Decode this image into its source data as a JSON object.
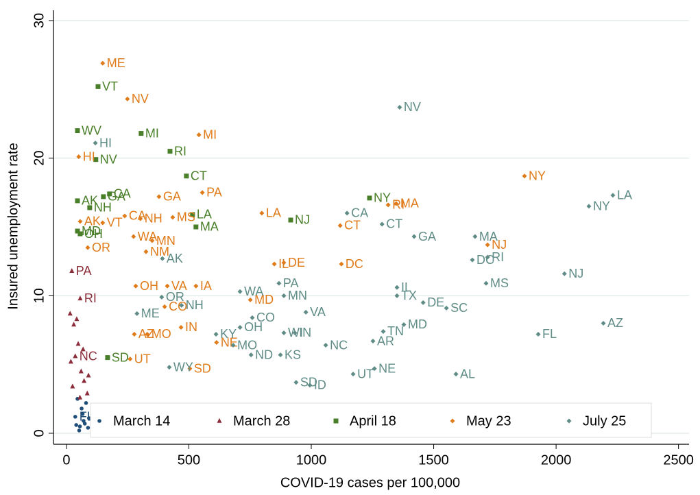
{
  "chart_data": {
    "type": "scatter",
    "xlabel": "COVID-19 cases per 100,000",
    "ylabel": "Insured unemployment rate",
    "xlim": [
      -53,
      2543
    ],
    "ylim": [
      -0.8,
      30.75
    ],
    "xticks": [
      0,
      500,
      1000,
      1500,
      2000,
      2500
    ],
    "yticks": [
      0,
      10,
      20,
      30
    ],
    "grid": true,
    "legend": "bottom",
    "series": [
      {
        "name": "March 14",
        "color": "#1f4e79",
        "marker": "circle",
        "x": [
          36,
          45,
          55,
          62,
          70,
          80,
          88,
          52,
          66,
          75,
          92,
          40
        ],
        "values": [
          1.2,
          2.5,
          0.5,
          1.8,
          0.9,
          2.2,
          0.4,
          0.2,
          1.4,
          0.7,
          1.1,
          0.6
        ],
        "labels": [
          "FL",
          null,
          null,
          null,
          null,
          null,
          null,
          null,
          null,
          null,
          null,
          null
        ]
      },
      {
        "name": "March 28",
        "color": "#8b2d3a",
        "marker": "triangle",
        "x": [
          22,
          56,
          36,
          15,
          30,
          48,
          60,
          72,
          85,
          25,
          42,
          68,
          90,
          18,
          55
        ],
        "values": [
          11.8,
          9.8,
          5.6,
          8.7,
          7.9,
          6.5,
          4.5,
          3.8,
          2.9,
          3.4,
          8.3,
          6.1,
          4.2,
          5.2,
          2.6
        ],
        "labels": [
          "PA",
          "RI",
          "NC",
          null,
          null,
          null,
          null,
          null,
          null,
          null,
          null,
          null,
          null,
          null,
          null
        ]
      },
      {
        "name": "April 18",
        "color": "#4a7f2a",
        "marker": "square",
        "x": [
          129,
          45,
          305,
          120,
          423,
          490,
          1238,
          916,
          529,
          515,
          151,
          45,
          95,
          176,
          45,
          56,
          168
        ],
        "values": [
          25.2,
          22.0,
          21.8,
          19.9,
          20.5,
          18.7,
          17.1,
          15.5,
          15.0,
          15.9,
          17.2,
          16.9,
          16.4,
          17.4,
          14.7,
          14.5,
          5.5
        ],
        "labels": [
          "VT",
          "WV",
          "MI",
          "NV",
          "RI",
          "CT",
          "NY",
          "NJ",
          "MA",
          "LA",
          "GA",
          "AK",
          "NH",
          "CA",
          "MD",
          "OH",
          "SD"
        ]
      },
      {
        "name": "May 23",
        "color": "#e07b1a",
        "marker": "diamond",
        "x": [
          148,
          249,
          541,
          50,
          1871,
          555,
          378,
          798,
          1347,
          1314,
          1118,
          434,
          302,
          238,
          148,
          56,
          274,
          350,
          325,
          1720,
          1123,
          888,
          849,
          87,
          412,
          529,
          751,
          468,
          613,
          504,
          260,
          283,
          401,
          277,
          330
        ],
        "values": [
          26.9,
          24.3,
          21.7,
          20.1,
          18.7,
          17.5,
          17.2,
          16.0,
          16.7,
          16.6,
          15.1,
          15.7,
          15.6,
          15.8,
          15.3,
          15.4,
          14.3,
          14.0,
          13.2,
          13.7,
          12.3,
          12.4,
          12.3,
          13.5,
          10.7,
          10.7,
          9.7,
          7.7,
          6.6,
          4.7,
          5.4,
          10.7,
          9.2,
          7.2,
          7.2
        ],
        "labels": [
          "ME",
          "NV",
          "MI",
          "HI",
          "NY",
          "PA",
          "GA",
          "LA",
          "MA",
          "RI",
          "CT",
          "MS",
          "NH",
          "CA",
          "VT",
          "AK",
          "WA",
          "MN",
          "NM",
          "NJ",
          "DC",
          "DE",
          "IL",
          "OR",
          "VA",
          "IA",
          "MD",
          "IN",
          "NE",
          "SD",
          "UT",
          "OH",
          "CO",
          "AZ",
          "MO"
        ]
      },
      {
        "name": "July 25",
        "color": "#5f8c86",
        "marker": "diamond",
        "x": [
          1361,
          118,
          1146,
          1289,
          1420,
          2134,
          2232,
          1669,
          1658,
          1720,
          2034,
          1714,
          392,
          868,
          1350,
          1350,
          1457,
          1552,
          888,
          709,
          978,
          2193,
          1378,
          1927,
          759,
          709,
          611,
          888,
          933,
          1294,
          1252,
          1059,
          681,
          754,
          874,
          1258,
          1171,
          1591,
          938,
          994,
          420,
          389,
          470,
          288
        ],
        "values": [
          23.7,
          21.1,
          16.0,
          15.2,
          14.3,
          16.5,
          17.3,
          14.3,
          12.6,
          12.8,
          11.6,
          10.9,
          12.7,
          10.9,
          10.6,
          10.0,
          9.5,
          9.1,
          10.0,
          10.3,
          8.8,
          8.0,
          7.9,
          7.2,
          8.4,
          7.7,
          7.2,
          7.3,
          7.3,
          7.4,
          6.7,
          6.4,
          6.4,
          5.7,
          5.7,
          4.7,
          4.3,
          4.3,
          3.7,
          3.5,
          4.8,
          9.9,
          9.3,
          8.7
        ],
        "labels": [
          "NV",
          "HI",
          "CA",
          "CT",
          "GA",
          "NY",
          "LA",
          "MA",
          "DC",
          "RI",
          "NJ",
          "MS",
          "AK",
          "PA",
          "IL",
          "TX",
          "DE",
          "SC",
          "MN",
          "WA",
          "VA",
          "AZ",
          "MD",
          "FL",
          "CO",
          "OH",
          "KY",
          "WI",
          "IN",
          "TN",
          "AR",
          "NC",
          "MO",
          "ND",
          "KS",
          "NE",
          "UT",
          "AL",
          "SD",
          "ID",
          "WY",
          "OR",
          "NH",
          "ME"
        ]
      }
    ]
  }
}
